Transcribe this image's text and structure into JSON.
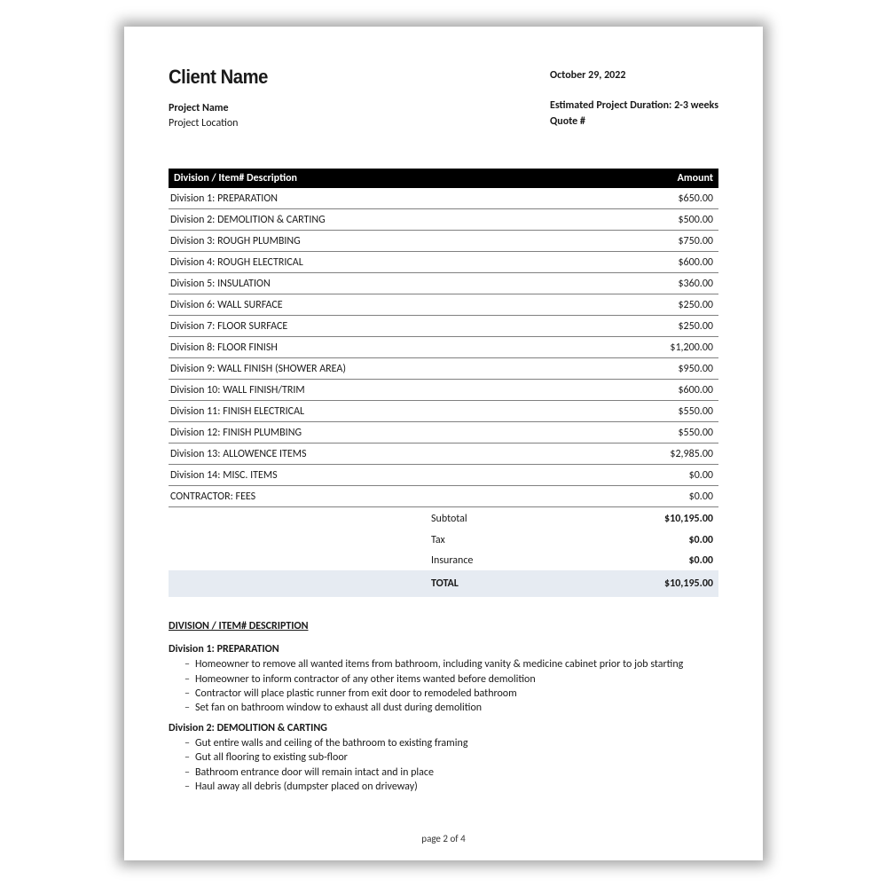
{
  "header": {
    "client_name": "Client Name",
    "project_name_label": "Project Name",
    "project_location_label": "Project Location",
    "date": "October 29, 2022",
    "duration_label": "Estimated Project Duration:",
    "duration_value": "2-3  weeks",
    "quote_label": "Quote #"
  },
  "table": {
    "col_desc": "Division / Item# Description",
    "col_amt": "Amount",
    "rows": [
      {
        "desc": "Division 1: PREPARATION",
        "amt": "$650.00"
      },
      {
        "desc": "Division 2: DEMOLITION & CARTING",
        "amt": "$500.00"
      },
      {
        "desc": "Division 3: ROUGH PLUMBING",
        "amt": "$750.00"
      },
      {
        "desc": "Division 4: ROUGH ELECTRICAL",
        "amt": "$600.00"
      },
      {
        "desc": "Division 5: INSULATION",
        "amt": "$360.00"
      },
      {
        "desc": "Division 6: WALL SURFACE",
        "amt": "$250.00"
      },
      {
        "desc": "Division 7: FLOOR SURFACE",
        "amt": "$250.00"
      },
      {
        "desc": "Division 8: FLOOR FINISH",
        "amt": "$1,200.00"
      },
      {
        "desc": "Division 9: WALL FINISH (SHOWER AREA)",
        "amt": "$950.00"
      },
      {
        "desc": "Division 10: WALL FINISH/TRIM",
        "amt": "$600.00"
      },
      {
        "desc": "Division 11: FINISH ELECTRICAL",
        "amt": "$550.00"
      },
      {
        "desc": "Division 12: FINISH PLUMBING",
        "amt": "$550.00"
      },
      {
        "desc": "Division 13: ALLOWENCE ITEMS",
        "amt": "$2,985.00"
      },
      {
        "desc": "Division 14: MISC. ITEMS",
        "amt": "$0.00"
      },
      {
        "desc": "CONTRACTOR: FEES",
        "amt": "$0.00"
      }
    ]
  },
  "totals": {
    "subtotal_label": "Subtotal",
    "subtotal_value": "$10,195.00",
    "tax_label": "Tax",
    "tax_value": "$0.00",
    "insurance_label": "Insurance",
    "insurance_value": "$0.00",
    "total_label": "TOTAL",
    "total_value": "$10,195.00"
  },
  "descriptions": {
    "heading": "DIVISION / ITEM# DESCRIPTION",
    "sections": [
      {
        "title": "Division 1: PREPARATION",
        "items": [
          "Homeowner to remove all wanted items from bathroom, including vanity & medicine cabinet prior to job starting",
          "Homeowner to inform contractor of any other items wanted before demolition",
          "Contractor will place plastic runner from exit door to remodeled bathroom",
          "Set fan on bathroom window to exhaust all dust during demolition"
        ]
      },
      {
        "title": "Division 2: DEMOLITION & CARTING",
        "items": [
          "Gut entire walls and ceiling of the bathroom to existing framing",
          "Gut all flooring to existing sub-floor",
          "Bathroom entrance door will remain intact and in place",
          "Haul away all debris (dumpster placed on driveway)"
        ]
      }
    ]
  },
  "footer": {
    "page": "page 2 of 4"
  },
  "style": {
    "header_bg": "#000000",
    "header_fg": "#ffffff",
    "row_border": "#808080",
    "total_bg": "#e6ebf2",
    "page_bg": "#ffffff",
    "shadow": "rgba(0,0,0,0.35)",
    "font_base": 12,
    "font_title": 22
  }
}
